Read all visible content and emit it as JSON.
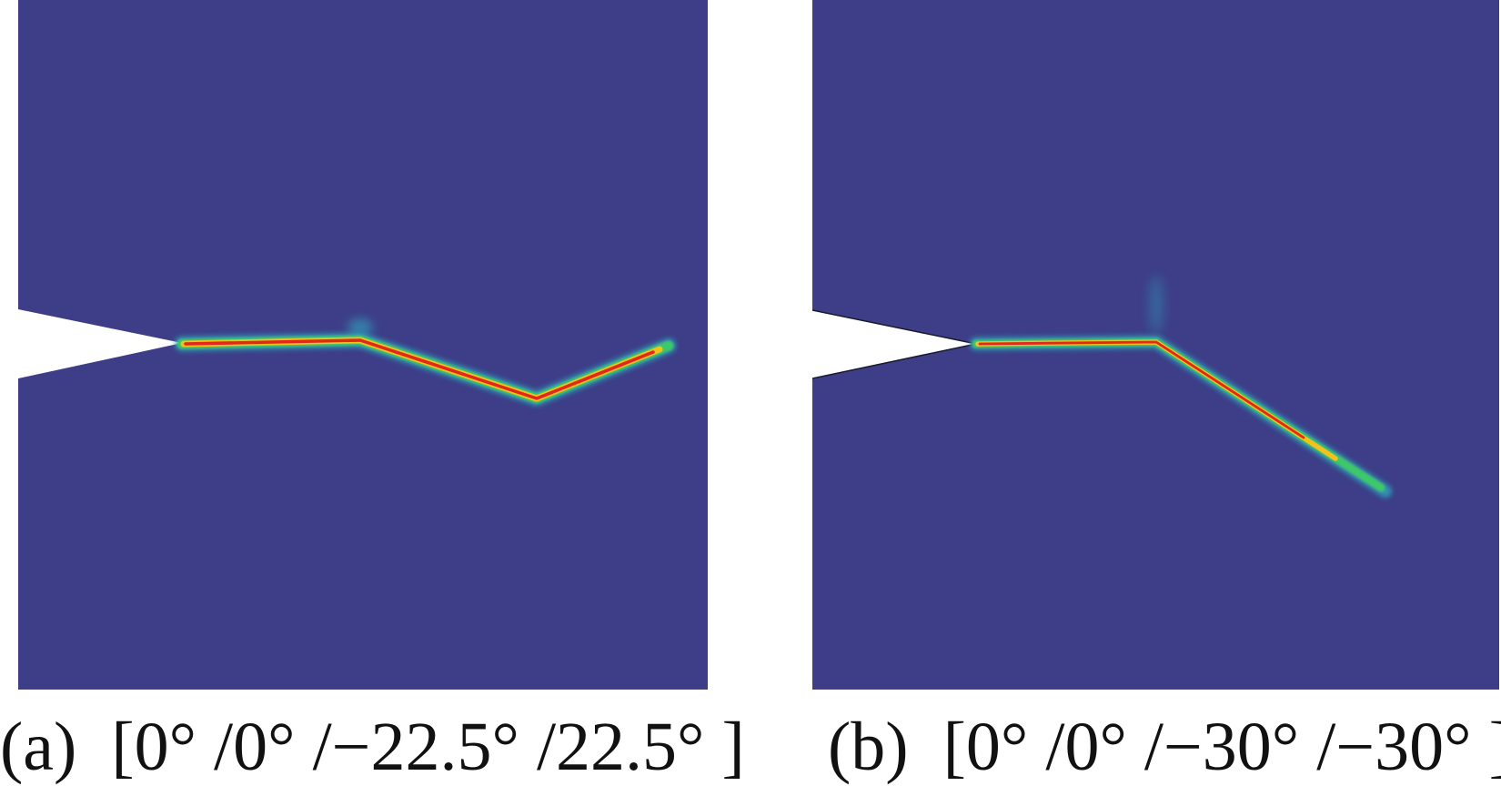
{
  "colors": {
    "background": "#ffffff",
    "field": "#3d3e87",
    "crack_core": "#e0281b",
    "crack_mid": "#f2c21c",
    "crack_edge": "#3ec86a",
    "crack_halo": "#2fb0c4"
  },
  "panels": [
    {
      "label": "(a)",
      "layup": "[0° /0° /−22.5° /22.5° ]"
    },
    {
      "label": "(b)",
      "layup": "[0° /0° /−30° /−30° ]"
    }
  ]
}
